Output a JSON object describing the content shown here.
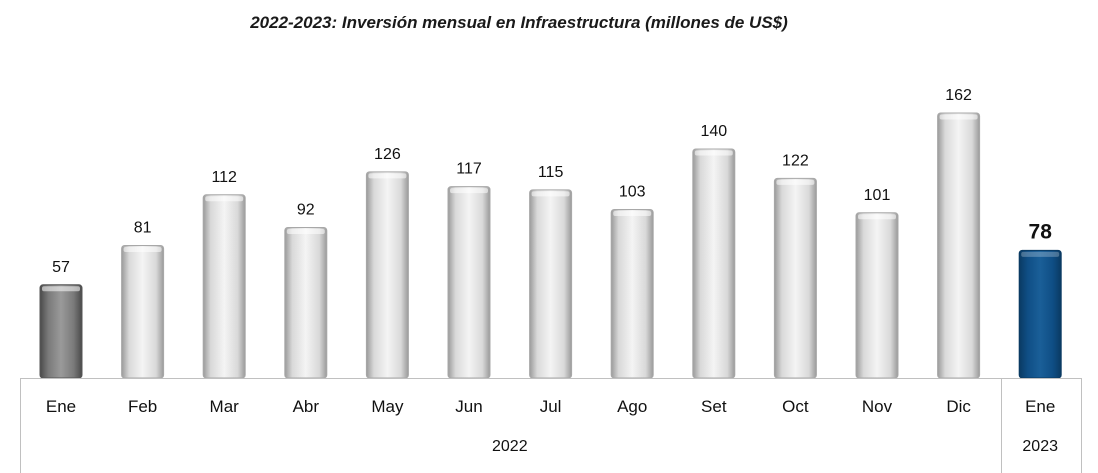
{
  "chart_data": {
    "type": "bar",
    "title": "2022-2023: Inversión mensual en Infraestructura (millones de US$)",
    "categories": [
      "Ene",
      "Feb",
      "Mar",
      "Abr",
      "May",
      "Jun",
      "Jul",
      "Ago",
      "Set",
      "Oct",
      "Nov",
      "Dic",
      "Ene"
    ],
    "values": [
      57,
      81,
      112,
      92,
      126,
      117,
      115,
      103,
      140,
      122,
      101,
      162,
      78
    ],
    "groups": [
      {
        "label": "2022",
        "count": 12
      },
      {
        "label": "2023",
        "count": 1
      }
    ],
    "ylim": [
      0,
      170
    ],
    "grid": false,
    "colors": {
      "first": "#808080",
      "default": "#dedede",
      "highlight": "#0e4d80"
    }
  }
}
